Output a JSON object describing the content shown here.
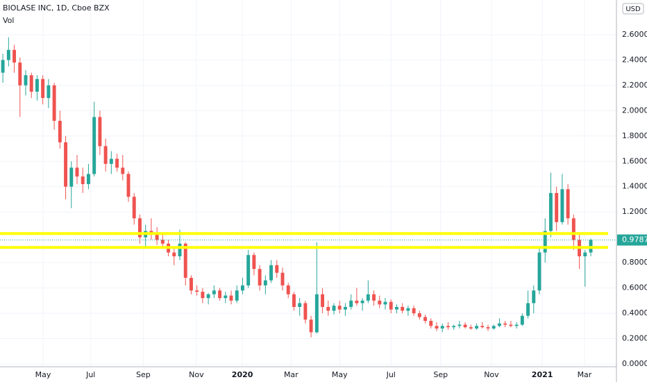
{
  "chart_data": {
    "type": "candlestick",
    "title": "BIOLASE INC, 1D, Cboe BZX",
    "subtitle": "Vol",
    "currency": "USD",
    "x": [
      0,
      1,
      2,
      3,
      4,
      5,
      6,
      7,
      8,
      9,
      10,
      11,
      12,
      13,
      14,
      15,
      16,
      17,
      18,
      19,
      20,
      21,
      22,
      23,
      24,
      25,
      26,
      27,
      28,
      29,
      30,
      31,
      32,
      33,
      34,
      35,
      36,
      37,
      38,
      39,
      40,
      41,
      42,
      43,
      44,
      45,
      46,
      47,
      48,
      49,
      50,
      51,
      52,
      53,
      54,
      55,
      56,
      57,
      58,
      59,
      60,
      61,
      62,
      63,
      64,
      65,
      66,
      67,
      68,
      69,
      70,
      71,
      72,
      73,
      74,
      75,
      76,
      77,
      78,
      79,
      80,
      81,
      82,
      83,
      84,
      85,
      86,
      87,
      88,
      89,
      90,
      91,
      92,
      93,
      94,
      95,
      96,
      97,
      98,
      99,
      100,
      101,
      102,
      103
    ],
    "open": [
      2.3,
      2.4,
      2.48,
      2.38,
      2.2,
      2.28,
      2.15,
      2.25,
      2.1,
      2.2,
      1.92,
      1.75,
      1.4,
      1.55,
      1.48,
      1.42,
      1.5,
      1.95,
      1.72,
      1.58,
      1.62,
      1.55,
      1.5,
      1.32,
      1.15,
      1.0,
      1.05,
      1.02,
      0.98,
      0.95,
      0.88,
      0.85,
      0.95,
      0.68,
      0.58,
      0.57,
      0.52,
      0.55,
      0.58,
      0.52,
      0.54,
      0.5,
      0.58,
      0.62,
      0.86,
      0.75,
      0.62,
      0.66,
      0.78,
      0.72,
      0.62,
      0.55,
      0.45,
      0.48,
      0.35,
      0.25,
      0.55,
      0.45,
      0.42,
      0.46,
      0.43,
      0.45,
      0.5,
      0.48,
      0.5,
      0.55,
      0.5,
      0.47,
      0.49,
      0.43,
      0.45,
      0.42,
      0.44,
      0.4,
      0.37,
      0.34,
      0.3,
      0.28,
      0.3,
      0.29,
      0.3,
      0.31,
      0.29,
      0.28,
      0.3,
      0.29,
      0.28,
      0.3,
      0.32,
      0.31,
      0.3,
      0.31,
      0.38,
      0.48,
      0.58,
      0.88,
      1.05,
      1.35,
      1.12,
      1.38,
      1.15,
      0.98,
      0.85,
      0.88
    ],
    "high": [
      2.45,
      2.58,
      2.52,
      2.42,
      2.32,
      2.3,
      2.28,
      2.28,
      2.25,
      2.22,
      2.0,
      1.8,
      1.6,
      1.65,
      1.55,
      1.58,
      2.07,
      2.0,
      1.78,
      1.68,
      1.66,
      1.65,
      1.52,
      1.35,
      1.18,
      1.1,
      1.15,
      1.08,
      1.03,
      0.98,
      0.92,
      1.06,
      0.96,
      0.7,
      0.62,
      0.6,
      0.56,
      0.62,
      0.6,
      0.57,
      0.58,
      0.62,
      0.68,
      0.9,
      0.88,
      0.78,
      0.7,
      0.82,
      0.82,
      0.76,
      0.64,
      0.57,
      0.52,
      0.5,
      0.38,
      0.96,
      0.6,
      0.5,
      0.48,
      0.5,
      0.48,
      0.55,
      0.6,
      0.52,
      0.66,
      0.58,
      0.54,
      0.52,
      0.51,
      0.47,
      0.48,
      0.46,
      0.46,
      0.42,
      0.39,
      0.36,
      0.33,
      0.32,
      0.33,
      0.31,
      0.34,
      0.33,
      0.31,
      0.32,
      0.33,
      0.31,
      0.31,
      0.36,
      0.34,
      0.34,
      0.33,
      0.4,
      0.58,
      0.62,
      0.92,
      1.15,
      1.51,
      1.4,
      1.5,
      1.42,
      1.18,
      1.02,
      0.9,
      0.99
    ],
    "low": [
      2.22,
      2.35,
      2.3,
      1.95,
      2.12,
      2.1,
      2.08,
      2.05,
      2.02,
      1.85,
      1.7,
      1.3,
      1.23,
      1.42,
      1.35,
      1.38,
      1.48,
      1.65,
      1.52,
      1.5,
      1.52,
      1.45,
      1.28,
      1.1,
      0.95,
      0.92,
      0.98,
      0.94,
      0.92,
      0.85,
      0.78,
      0.82,
      0.62,
      0.55,
      0.54,
      0.48,
      0.47,
      0.52,
      0.5,
      0.48,
      0.47,
      0.48,
      0.55,
      0.6,
      0.7,
      0.58,
      0.55,
      0.64,
      0.68,
      0.58,
      0.52,
      0.42,
      0.38,
      0.32,
      0.21,
      0.24,
      0.4,
      0.38,
      0.39,
      0.4,
      0.38,
      0.43,
      0.46,
      0.42,
      0.48,
      0.46,
      0.44,
      0.43,
      0.4,
      0.4,
      0.4,
      0.38,
      0.38,
      0.35,
      0.32,
      0.28,
      0.26,
      0.25,
      0.27,
      0.27,
      0.28,
      0.28,
      0.27,
      0.27,
      0.28,
      0.26,
      0.27,
      0.29,
      0.29,
      0.29,
      0.28,
      0.3,
      0.36,
      0.4,
      0.55,
      0.8,
      1.0,
      1.05,
      1.1,
      1.1,
      0.9,
      0.75,
      0.61,
      0.85
    ],
    "close": [
      2.4,
      2.48,
      2.38,
      2.2,
      2.28,
      2.15,
      2.25,
      2.1,
      2.2,
      1.92,
      1.75,
      1.4,
      1.55,
      1.48,
      1.42,
      1.5,
      1.95,
      1.72,
      1.58,
      1.62,
      1.55,
      1.5,
      1.32,
      1.15,
      1.0,
      1.05,
      1.02,
      0.98,
      0.95,
      0.88,
      0.85,
      0.95,
      0.68,
      0.58,
      0.57,
      0.52,
      0.55,
      0.58,
      0.52,
      0.54,
      0.5,
      0.58,
      0.62,
      0.86,
      0.75,
      0.62,
      0.66,
      0.78,
      0.72,
      0.62,
      0.55,
      0.45,
      0.48,
      0.35,
      0.25,
      0.55,
      0.45,
      0.42,
      0.46,
      0.43,
      0.45,
      0.5,
      0.48,
      0.5,
      0.55,
      0.5,
      0.47,
      0.49,
      0.43,
      0.45,
      0.42,
      0.44,
      0.4,
      0.37,
      0.34,
      0.3,
      0.28,
      0.3,
      0.29,
      0.3,
      0.31,
      0.29,
      0.28,
      0.3,
      0.29,
      0.28,
      0.3,
      0.32,
      0.31,
      0.3,
      0.31,
      0.38,
      0.48,
      0.58,
      0.88,
      1.05,
      1.35,
      1.12,
      1.38,
      1.15,
      0.98,
      0.85,
      0.88,
      0.9787
    ],
    "last_value_label": "0.9787",
    "up_color": "#26a69a",
    "down_color": "#ef5350",
    "hlines": [
      {
        "value": 1.03,
        "color": "#ffff00"
      },
      {
        "value": 0.92,
        "color": "#ffff00"
      }
    ],
    "xlim": [
      -0.5,
      107.5
    ],
    "ylim": [
      -0.022,
      2.874
    ],
    "xticks": [
      {
        "value": 7.04,
        "label": "May"
      },
      {
        "value": 15.4,
        "label": "Jul"
      },
      {
        "value": 24.6,
        "label": "Sep"
      },
      {
        "value": 33.9,
        "label": "Nov"
      },
      {
        "value": 41.96,
        "label": "2020"
      },
      {
        "value": 50.5,
        "label": "Mar"
      },
      {
        "value": 59,
        "label": "May"
      },
      {
        "value": 68,
        "label": "Jul"
      },
      {
        "value": 76.7,
        "label": "Sep"
      },
      {
        "value": 85.6,
        "label": "Nov"
      },
      {
        "value": 94.5,
        "label": "2021"
      },
      {
        "value": 101.9,
        "label": "Mar"
      }
    ],
    "yticks": [
      {
        "value": 0,
        "label": "0.0000"
      },
      {
        "value": 0.2,
        "label": "0.2000"
      },
      {
        "value": 0.4,
        "label": "0.4000"
      },
      {
        "value": 0.6,
        "label": "0.6000"
      },
      {
        "value": 0.8,
        "label": "0.8000"
      },
      {
        "value": 1.2,
        "label": "1.2000"
      },
      {
        "value": 1.4,
        "label": "1.4000"
      },
      {
        "value": 1.6,
        "label": "1.6000"
      },
      {
        "value": 1.8,
        "label": "1.8000"
      },
      {
        "value": 2.0,
        "label": "2.0000"
      },
      {
        "value": 2.2,
        "label": "2.2000"
      },
      {
        "value": 2.4,
        "label": "2.4000"
      },
      {
        "value": 2.6,
        "label": "2.6000"
      }
    ],
    "grid": true
  }
}
